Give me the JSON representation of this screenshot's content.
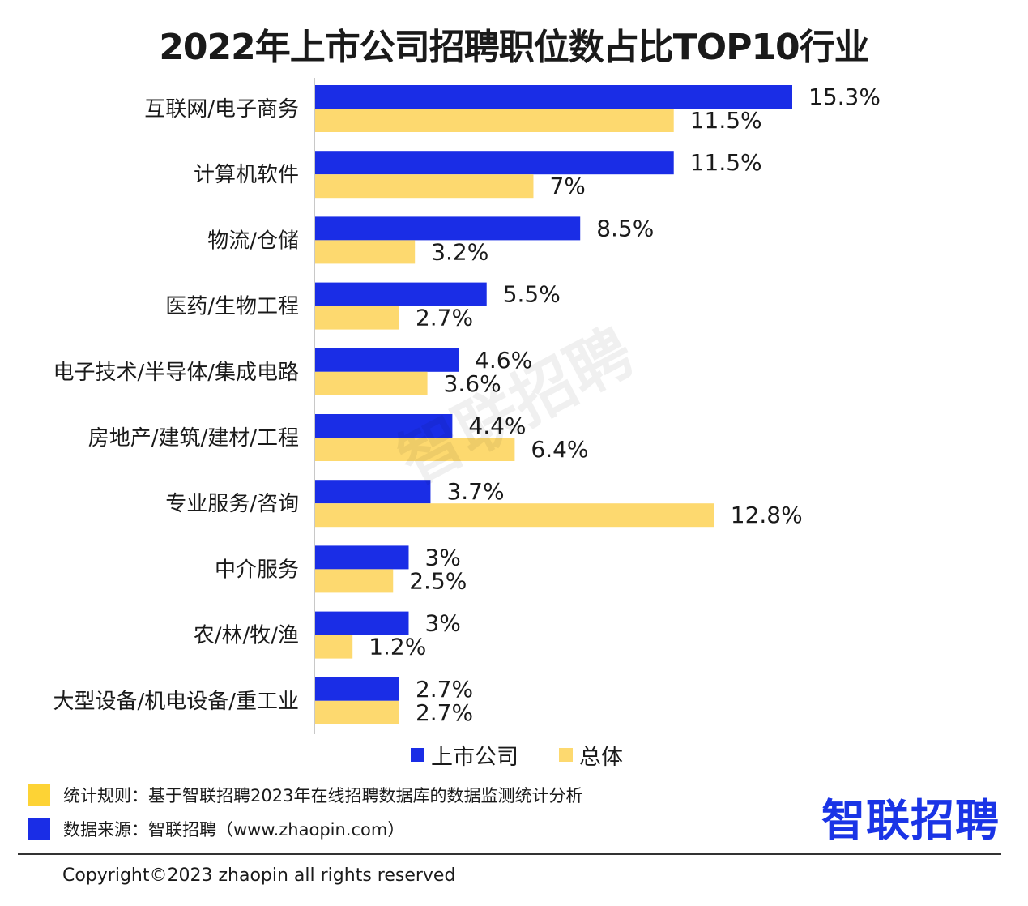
{
  "chart_data": {
    "type": "bar",
    "orientation": "horizontal",
    "title": "2022年上市公司招聘职位数占比TOP10行业",
    "categories": [
      "互联网/电子商务",
      "计算机软件",
      "物流/仓储",
      "医药/生物工程",
      "电子技术/半导体/集成电路",
      "房地产/建筑/建材/工程",
      "专业服务/咨询",
      "中介服务",
      "农/林/牧/渔",
      "大型设备/机电设备/重工业"
    ],
    "series": [
      {
        "name": "上市公司",
        "color": "#1a2de6",
        "values": [
          15.3,
          11.5,
          8.5,
          5.5,
          4.6,
          4.4,
          3.7,
          3,
          3,
          2.7
        ],
        "labels": [
          "15.3%",
          "11.5%",
          "8.5%",
          "5.5%",
          "4.6%",
          "4.4%",
          "3.7%",
          "3%",
          "3%",
          "2.7%"
        ]
      },
      {
        "name": "总体",
        "color": "#fdd96f",
        "values": [
          11.5,
          7,
          3.2,
          2.7,
          3.6,
          6.4,
          12.8,
          2.5,
          1.2,
          2.7
        ],
        "labels": [
          "11.5%",
          "7%",
          "3.2%",
          "2.7%",
          "3.6%",
          "6.4%",
          "12.8%",
          "2.5%",
          "1.2%",
          "2.7%"
        ]
      }
    ],
    "xlim": [
      0,
      16
    ],
    "legend_position": "bottom",
    "grid": false
  },
  "watermark": "智联招聘",
  "footnotes": [
    {
      "text": "统计规则：基于智联招聘2023年在线招聘数据库的数据监测统计分析",
      "color": "#fdd335"
    },
    {
      "text": "数据来源：智联招聘（www.zhaopin.com）",
      "color": "#1a2de6"
    }
  ],
  "brand": "智联招聘",
  "copyright": "Copyright©2023 zhaopin all rights reserved"
}
